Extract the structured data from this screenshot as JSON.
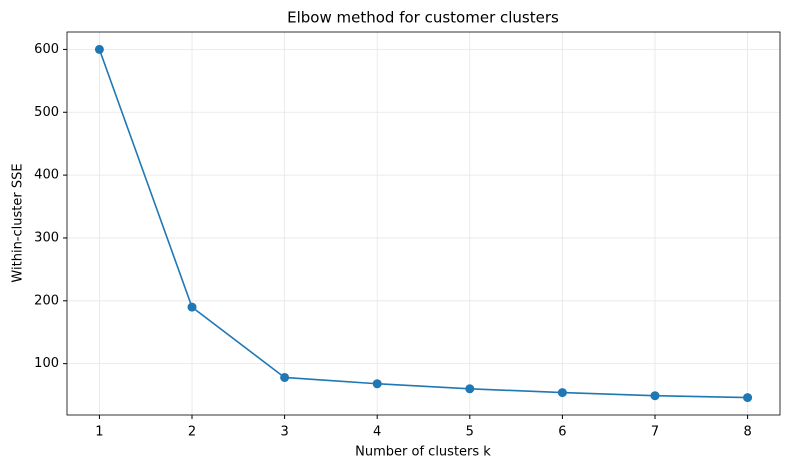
{
  "chart_data": {
    "type": "line",
    "title": "Elbow method for customer clusters",
    "x_label": "Number of clusters k",
    "y_label": "Within-cluster SSE",
    "x": [
      1,
      2,
      3,
      4,
      5,
      6,
      7,
      8
    ],
    "series": [
      {
        "name": "SSE",
        "color": "#1f77b4",
        "values": [
          600,
          190,
          78,
          68,
          60,
          54,
          49,
          46
        ]
      }
    ],
    "xlim": [
      0.65,
      8.35
    ],
    "xticks": [
      1,
      2,
      3,
      4,
      5,
      6,
      7,
      8
    ],
    "ylim": [
      18.3,
      627.7
    ],
    "yticks": [
      100,
      200,
      300,
      400,
      500,
      600
    ],
    "grid": true,
    "markers": true
  }
}
